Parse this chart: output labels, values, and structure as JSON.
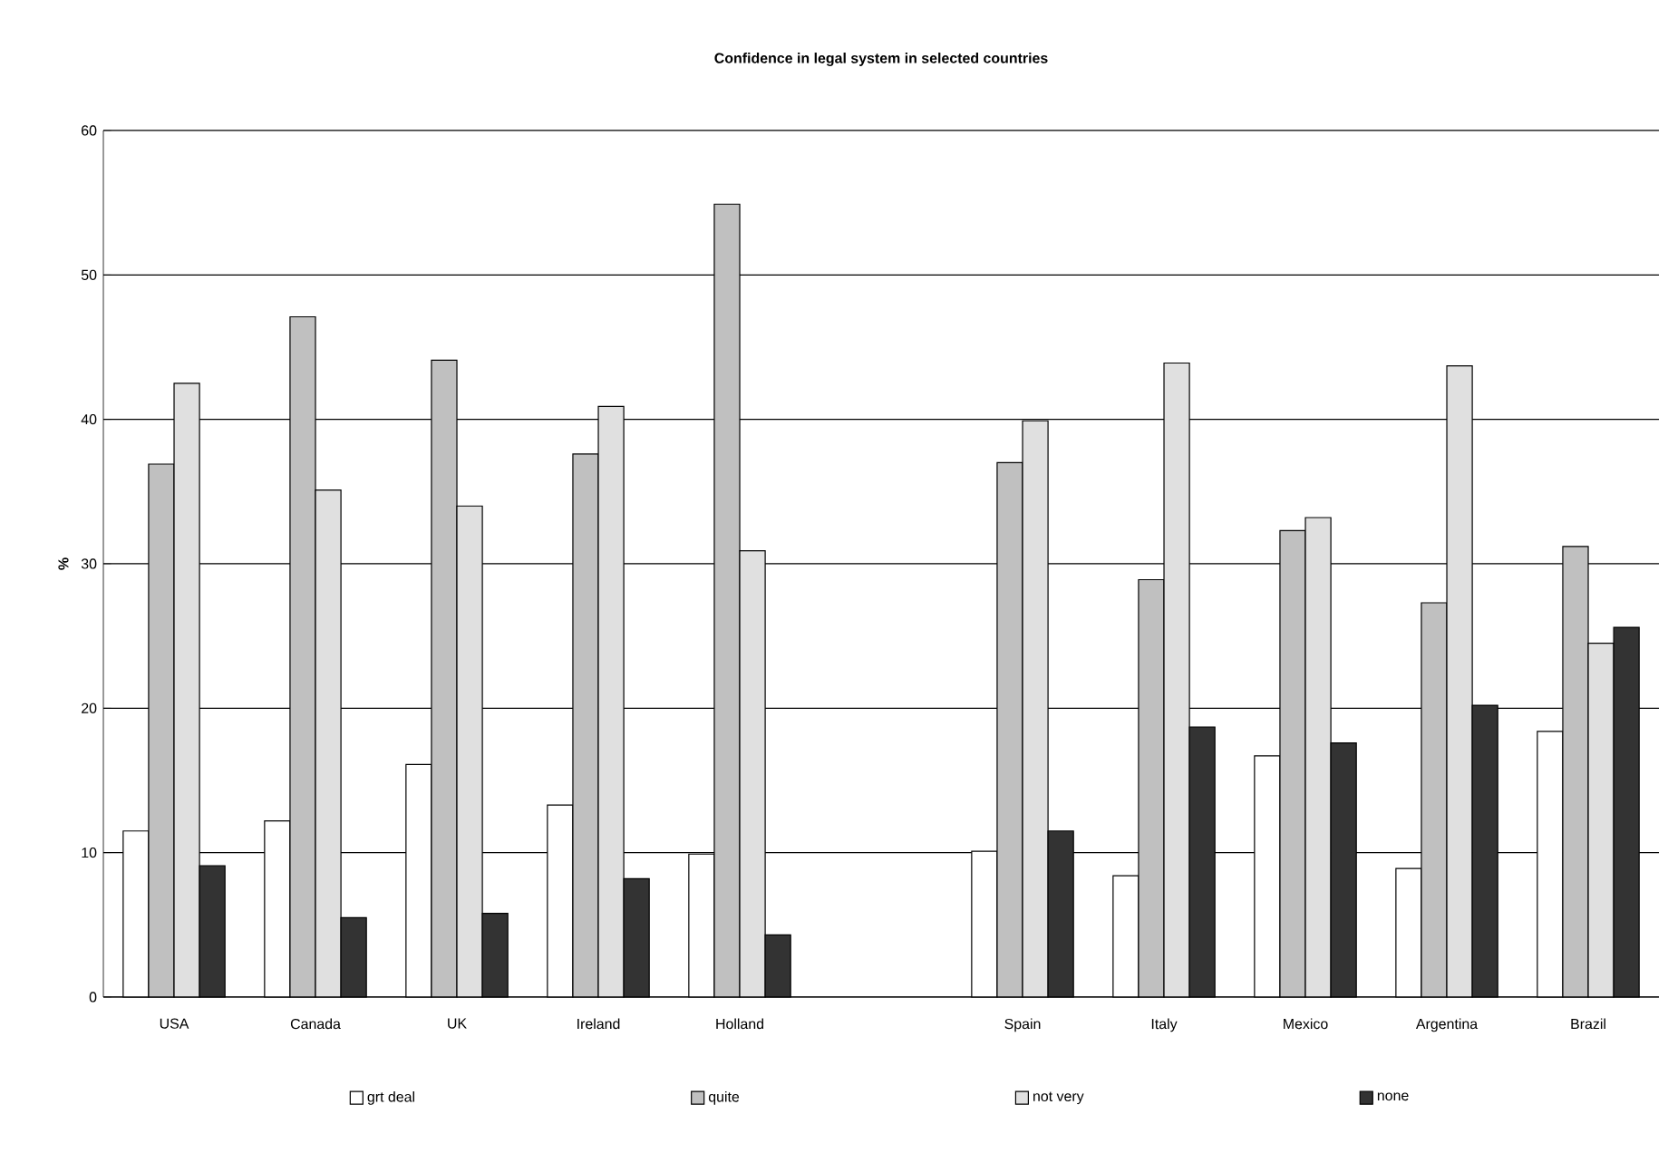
{
  "chart_data": {
    "type": "bar",
    "title": "Confidence in legal system in selected countries",
    "ylabel": "%",
    "categories": [
      "USA",
      "Canada",
      "UK",
      "Ireland",
      "Holland",
      null,
      "Spain",
      "Italy",
      "Mexico",
      "Argentina",
      "Brazil"
    ],
    "series": [
      {
        "name": "grt deal",
        "color": "#ffffff",
        "values": [
          11.5,
          12.2,
          16.1,
          13.3,
          9.9,
          null,
          10.1,
          8.4,
          16.7,
          8.9,
          18.4
        ]
      },
      {
        "name": "quite",
        "color": "#c0c0c0",
        "values": [
          36.9,
          47.1,
          44.1,
          37.6,
          54.9,
          null,
          37.0,
          28.9,
          32.3,
          27.3,
          31.2
        ]
      },
      {
        "name": "not very",
        "color": "#e0e0e0",
        "values": [
          42.5,
          35.1,
          34.0,
          40.9,
          30.9,
          null,
          39.9,
          43.9,
          33.2,
          43.7,
          24.5
        ]
      },
      {
        "name": "none",
        "color": "#333333",
        "values": [
          9.1,
          5.5,
          5.8,
          8.2,
          4.3,
          null,
          11.5,
          18.7,
          17.6,
          20.2,
          25.6
        ]
      }
    ],
    "ylim": [
      0,
      60
    ],
    "yticks": [
      0,
      10,
      20,
      30,
      40,
      50,
      60
    ],
    "grid": "y",
    "legend": "bottom"
  }
}
